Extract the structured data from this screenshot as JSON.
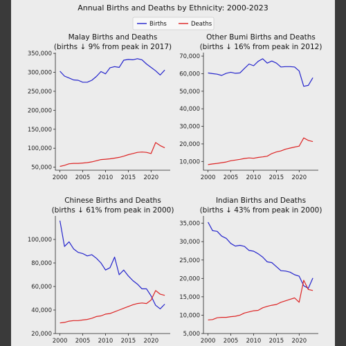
{
  "figure": {
    "title": "Annual Births and Deaths by Ethnicity: 2000-2023",
    "legend": [
      {
        "label": "Births",
        "color": "#2222cc"
      },
      {
        "label": "Deaths",
        "color": "#dd2222"
      }
    ],
    "legend_position": "top-center"
  },
  "chart_data": [
    {
      "type": "line",
      "title": "Malay Births and Deaths",
      "subtitle": "(births ↓ 9% from peak in 2017)",
      "x": [
        2000,
        2001,
        2002,
        2003,
        2004,
        2005,
        2006,
        2007,
        2008,
        2009,
        2010,
        2011,
        2012,
        2013,
        2014,
        2015,
        2016,
        2017,
        2018,
        2019,
        2020,
        2021,
        2022,
        2023
      ],
      "series": [
        {
          "name": "Births",
          "color": "#2222cc",
          "values": [
            303000,
            290000,
            285000,
            280000,
            279000,
            274000,
            274000,
            279000,
            289000,
            302000,
            296000,
            312000,
            315000,
            313000,
            332000,
            334000,
            333000,
            336000,
            333000,
            322000,
            313000,
            304000,
            293000,
            306000
          ]
        },
        {
          "name": "Deaths",
          "color": "#dd2222",
          "values": [
            52000,
            55000,
            59000,
            60000,
            60000,
            61000,
            62000,
            64000,
            67000,
            70000,
            71000,
            72000,
            74000,
            76000,
            79000,
            83000,
            86000,
            89000,
            90000,
            89000,
            86000,
            115000,
            107000,
            101000
          ]
        }
      ],
      "xticks": [
        2000,
        2005,
        2010,
        2015,
        2020
      ],
      "yticks": [
        50000,
        100000,
        150000,
        200000,
        250000,
        300000,
        350000
      ],
      "ytick_labels": [
        "50,000",
        "100,000",
        "150,000",
        "200,000",
        "250,000",
        "300,000",
        "350,000"
      ],
      "xlim": [
        1999,
        2024.2
      ],
      "ylim": [
        42000,
        352000
      ]
    },
    {
      "type": "line",
      "title": "Other Bumi Births and Deaths",
      "subtitle": "(births ↓ 16% from peak in 2012)",
      "x": [
        2000,
        2001,
        2002,
        2003,
        2004,
        2005,
        2006,
        2007,
        2008,
        2009,
        2010,
        2011,
        2012,
        2013,
        2014,
        2015,
        2016,
        2017,
        2018,
        2019,
        2020,
        2021,
        2022,
        2023
      ],
      "series": [
        {
          "name": "Births",
          "color": "#2222cc",
          "values": [
            60400,
            60000,
            59700,
            59000,
            60200,
            60800,
            60200,
            60400,
            63000,
            65500,
            64500,
            67000,
            68500,
            66000,
            67200,
            66000,
            63800,
            64000,
            64000,
            63800,
            61500,
            52800,
            53300,
            57700
          ]
        },
        {
          "name": "Deaths",
          "color": "#dd2222",
          "values": [
            8200,
            8600,
            8900,
            9300,
            9700,
            10400,
            10800,
            11200,
            11700,
            12000,
            11800,
            12300,
            12600,
            13000,
            14500,
            15400,
            16000,
            17000,
            17600,
            18200,
            18700,
            23400,
            22000,
            21300
          ]
        }
      ],
      "xticks": [
        2000,
        2005,
        2010,
        2015,
        2020
      ],
      "yticks": [
        10000,
        20000,
        30000,
        40000,
        50000,
        60000,
        70000
      ],
      "ytick_labels": [
        "10,000",
        "20,000",
        "30,000",
        "40,000",
        "50,000",
        "60,000",
        "70,000"
      ],
      "xlim": [
        1999,
        2024.2
      ],
      "ylim": [
        5000,
        72000
      ]
    },
    {
      "type": "line",
      "title": "Chinese Births and Deaths",
      "subtitle": "(births ↓ 61% from peak in 2000)",
      "x": [
        2000,
        2001,
        2002,
        2003,
        2004,
        2005,
        2006,
        2007,
        2008,
        2009,
        2010,
        2011,
        2012,
        2013,
        2014,
        2015,
        2016,
        2017,
        2018,
        2019,
        2020,
        2021,
        2022,
        2023
      ],
      "series": [
        {
          "name": "Births",
          "color": "#2222cc",
          "values": [
            116000,
            94000,
            98000,
            92000,
            89000,
            88000,
            86000,
            87000,
            84000,
            80000,
            74000,
            76000,
            85000,
            70000,
            74000,
            69000,
            65000,
            62000,
            58000,
            58000,
            52000,
            44000,
            41000,
            45000
          ]
        },
        {
          "name": "Deaths",
          "color": "#dd2222",
          "values": [
            29000,
            29500,
            30500,
            31000,
            31000,
            31500,
            32000,
            33000,
            34500,
            35000,
            36500,
            37000,
            38500,
            40000,
            41500,
            43000,
            44500,
            45500,
            46000,
            45500,
            48500,
            56500,
            53500,
            52500
          ]
        }
      ],
      "xticks": [
        2000,
        2005,
        2010,
        2015,
        2020
      ],
      "yticks": [
        20000,
        40000,
        60000,
        80000,
        100000
      ],
      "ytick_labels": [
        "20,000",
        "40,000",
        "60,000",
        "80,000",
        "100,000"
      ],
      "xlim": [
        1999,
        2024.2
      ],
      "ylim": [
        20000,
        120000
      ]
    },
    {
      "type": "line",
      "title": "Indian Births and Deaths",
      "subtitle": "(births ↓ 43% from peak in 2000)",
      "x": [
        2000,
        2001,
        2002,
        2003,
        2004,
        2005,
        2006,
        2007,
        2008,
        2009,
        2010,
        2011,
        2012,
        2013,
        2014,
        2015,
        2016,
        2017,
        2018,
        2019,
        2020,
        2021,
        2022,
        2023
      ],
      "series": [
        {
          "name": "Births",
          "color": "#2222cc",
          "values": [
            35300,
            33000,
            32800,
            31500,
            30900,
            29500,
            28800,
            29000,
            28700,
            27600,
            27400,
            26700,
            25800,
            24500,
            24300,
            23200,
            22100,
            22000,
            21700,
            21000,
            20600,
            18000,
            17300,
            20100
          ]
        },
        {
          "name": "Deaths",
          "color": "#dd2222",
          "values": [
            8700,
            8800,
            9300,
            9400,
            9400,
            9600,
            9700,
            10000,
            10600,
            10900,
            11200,
            11300,
            12000,
            12400,
            12700,
            12900,
            13500,
            13900,
            14300,
            14700,
            13500,
            19500,
            17000,
            16700
          ]
        }
      ],
      "xticks": [
        2000,
        2005,
        2010,
        2015,
        2020
      ],
      "yticks": [
        5000,
        10000,
        15000,
        20000,
        25000,
        30000,
        35000
      ],
      "ytick_labels": [
        "5,000",
        "10,000",
        "15,000",
        "20,000",
        "25,000",
        "30,000",
        "35,000"
      ],
      "xlim": [
        1999,
        2024.2
      ],
      "ylim": [
        5000,
        37000
      ]
    }
  ]
}
